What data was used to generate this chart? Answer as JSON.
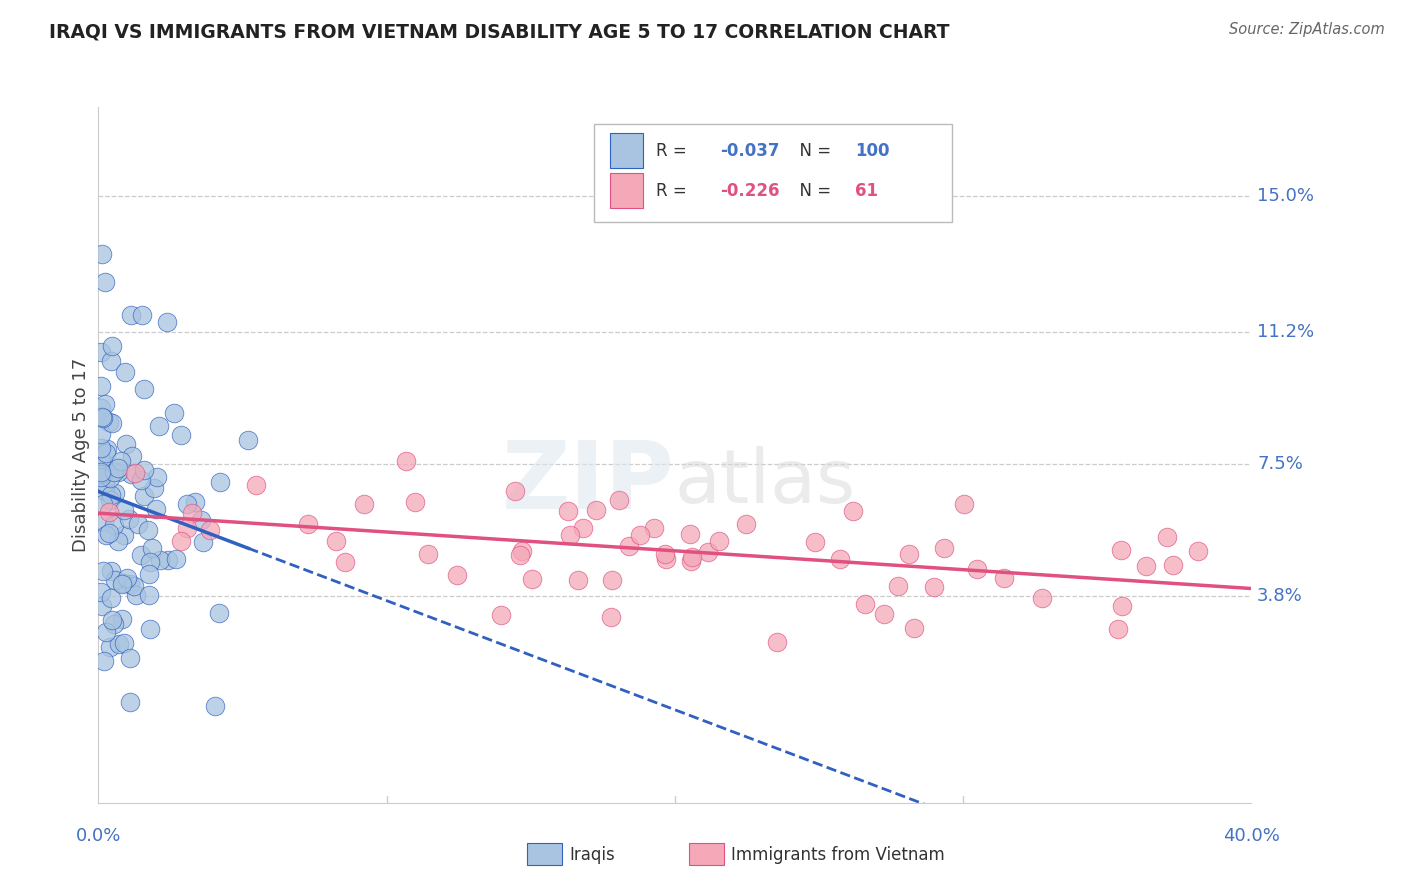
{
  "title": "IRAQI VS IMMIGRANTS FROM VIETNAM DISABILITY AGE 5 TO 17 CORRELATION CHART",
  "source": "Source: ZipAtlas.com",
  "ylabel": "Disability Age 5 to 17",
  "ytick_labels": [
    "15.0%",
    "11.2%",
    "7.5%",
    "3.8%"
  ],
  "ytick_values": [
    0.15,
    0.112,
    0.075,
    0.038
  ],
  "xmin": 0.0,
  "xmax": 0.4,
  "ymin": -0.02,
  "ymax": 0.175,
  "legend_R_iraqi": "-0.037",
  "legend_N_iraqi": "100",
  "legend_R_vietnam": "-0.226",
  "legend_N_vietnam": "61",
  "iraqi_color": "#a8c4e0",
  "vietnam_color": "#f4a8b8",
  "trendline_iraqi_color": "#3060c0",
  "trendline_vietnam_color": "#e05080",
  "iraqi_seed": 42,
  "vietnam_seed": 7,
  "n_iraqi": 100,
  "n_vietnam": 61
}
